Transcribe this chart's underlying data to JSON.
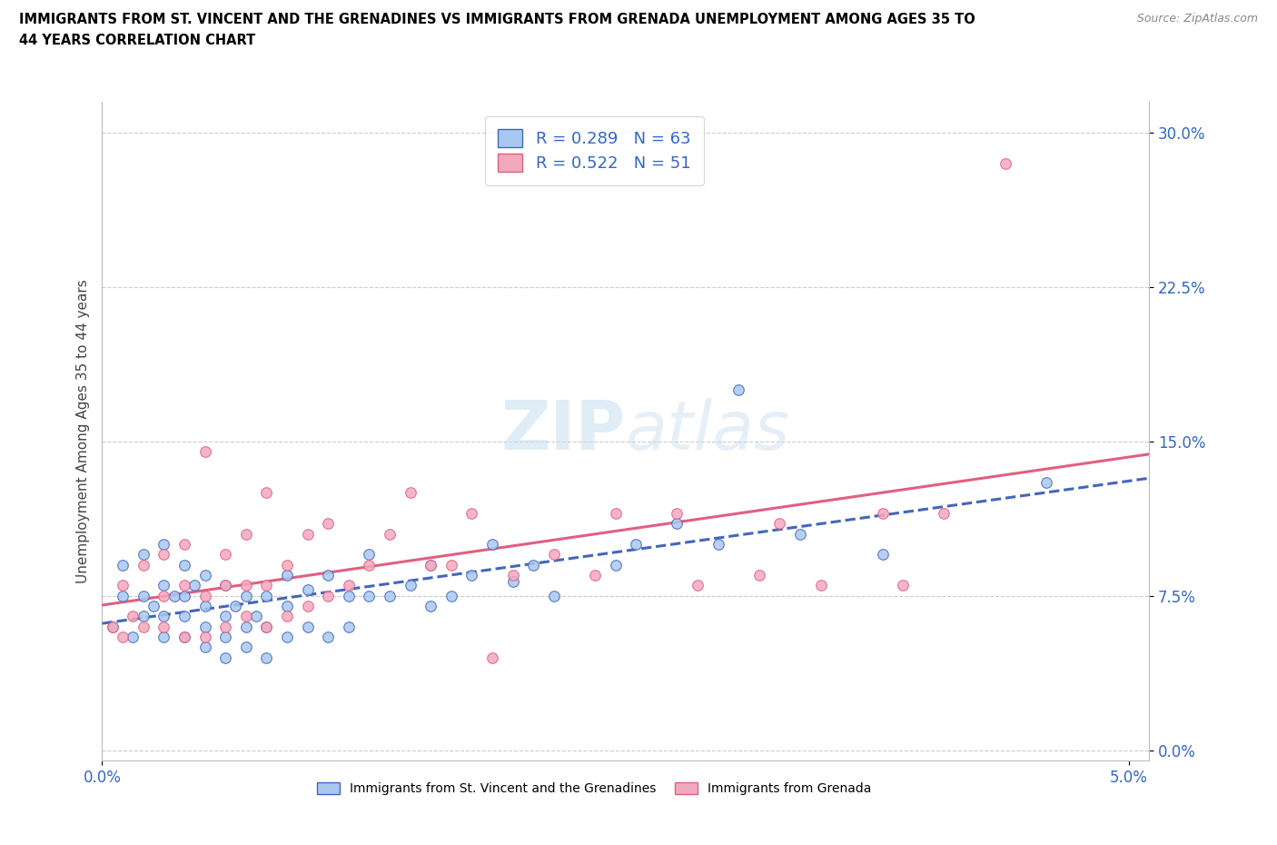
{
  "title_line1": "IMMIGRANTS FROM ST. VINCENT AND THE GRENADINES VS IMMIGRANTS FROM GRENADA UNEMPLOYMENT AMONG AGES 35 TO",
  "title_line2": "44 YEARS CORRELATION CHART",
  "source": "Source: ZipAtlas.com",
  "ylabel": "Unemployment Among Ages 35 to 44 years",
  "xlim": [
    0.0,
    0.051
  ],
  "ylim": [
    -0.005,
    0.315
  ],
  "yticks": [
    0.0,
    0.075,
    0.15,
    0.225,
    0.3
  ],
  "ytick_labels": [
    "0.0%",
    "7.5%",
    "15.0%",
    "22.5%",
    "30.0%"
  ],
  "xticks": [
    0.0,
    0.05
  ],
  "xtick_labels": [
    "0.0%",
    "5.0%"
  ],
  "r_sv": 0.289,
  "n_sv": 63,
  "r_gr": 0.522,
  "n_gr": 51,
  "color_sv": "#a8c8f0",
  "color_gr": "#f4a8c0",
  "line_color_sv": "#4466bb",
  "line_color_gr": "#e06080",
  "watermark_zip": "ZIP",
  "watermark_atlas": "atlas",
  "legend_label_sv": "Immigrants from St. Vincent and the Grenadines",
  "legend_label_gr": "Immigrants from Grenada",
  "sv_x": [
    0.0005,
    0.001,
    0.001,
    0.0015,
    0.002,
    0.002,
    0.002,
    0.0025,
    0.003,
    0.003,
    0.003,
    0.003,
    0.0035,
    0.004,
    0.004,
    0.004,
    0.004,
    0.0045,
    0.005,
    0.005,
    0.005,
    0.005,
    0.006,
    0.006,
    0.006,
    0.006,
    0.0065,
    0.007,
    0.007,
    0.007,
    0.0075,
    0.008,
    0.008,
    0.008,
    0.009,
    0.009,
    0.009,
    0.01,
    0.01,
    0.011,
    0.011,
    0.012,
    0.012,
    0.013,
    0.013,
    0.014,
    0.015,
    0.016,
    0.016,
    0.017,
    0.018,
    0.019,
    0.02,
    0.021,
    0.022,
    0.025,
    0.026,
    0.028,
    0.03,
    0.031,
    0.034,
    0.038,
    0.046
  ],
  "sv_y": [
    0.06,
    0.075,
    0.09,
    0.055,
    0.065,
    0.075,
    0.095,
    0.07,
    0.055,
    0.065,
    0.08,
    0.1,
    0.075,
    0.055,
    0.065,
    0.075,
    0.09,
    0.08,
    0.05,
    0.06,
    0.07,
    0.085,
    0.045,
    0.055,
    0.065,
    0.08,
    0.07,
    0.05,
    0.06,
    0.075,
    0.065,
    0.045,
    0.06,
    0.075,
    0.055,
    0.07,
    0.085,
    0.06,
    0.078,
    0.055,
    0.085,
    0.06,
    0.075,
    0.075,
    0.095,
    0.075,
    0.08,
    0.07,
    0.09,
    0.075,
    0.085,
    0.1,
    0.082,
    0.09,
    0.075,
    0.09,
    0.1,
    0.11,
    0.1,
    0.175,
    0.105,
    0.095,
    0.13
  ],
  "gr_x": [
    0.0005,
    0.001,
    0.001,
    0.0015,
    0.002,
    0.002,
    0.003,
    0.003,
    0.003,
    0.004,
    0.004,
    0.004,
    0.005,
    0.005,
    0.005,
    0.006,
    0.006,
    0.006,
    0.007,
    0.007,
    0.007,
    0.008,
    0.008,
    0.008,
    0.009,
    0.009,
    0.01,
    0.01,
    0.011,
    0.011,
    0.012,
    0.013,
    0.014,
    0.015,
    0.016,
    0.017,
    0.018,
    0.019,
    0.02,
    0.022,
    0.024,
    0.025,
    0.028,
    0.029,
    0.032,
    0.033,
    0.035,
    0.038,
    0.039,
    0.041,
    0.044
  ],
  "gr_y": [
    0.06,
    0.055,
    0.08,
    0.065,
    0.06,
    0.09,
    0.06,
    0.075,
    0.095,
    0.055,
    0.08,
    0.1,
    0.055,
    0.075,
    0.145,
    0.06,
    0.08,
    0.095,
    0.065,
    0.08,
    0.105,
    0.06,
    0.08,
    0.125,
    0.065,
    0.09,
    0.07,
    0.105,
    0.075,
    0.11,
    0.08,
    0.09,
    0.105,
    0.125,
    0.09,
    0.09,
    0.115,
    0.045,
    0.085,
    0.095,
    0.085,
    0.115,
    0.115,
    0.08,
    0.085,
    0.11,
    0.08,
    0.115,
    0.08,
    0.115,
    0.285
  ]
}
